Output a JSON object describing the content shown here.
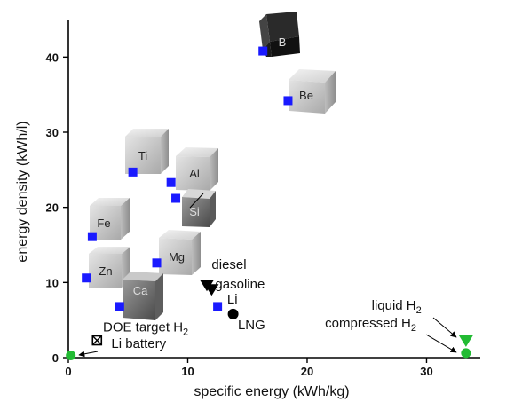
{
  "chart_data": {
    "type": "scatter",
    "xlabel": "specific energy (kWh/kg)",
    "ylabel": "energy density (kWh/l)",
    "xlim": [
      0,
      34.5
    ],
    "ylim": [
      0,
      45
    ],
    "x_ticks": [
      0,
      10,
      20,
      30
    ],
    "y_ticks": [
      0,
      10,
      20,
      30,
      40
    ],
    "grid": false,
    "series": [
      {
        "marker": "square",
        "color": "#1a1aff",
        "points": [
          {
            "x": 1.5,
            "y": 10.6
          },
          {
            "x": 2.0,
            "y": 16.1
          },
          {
            "x": 4.3,
            "y": 6.8
          },
          {
            "x": 5.4,
            "y": 24.7
          },
          {
            "x": 7.4,
            "y": 12.6
          },
          {
            "x": 8.6,
            "y": 23.3
          },
          {
            "x": 9.0,
            "y": 21.2
          },
          {
            "x": 12.5,
            "y": 6.8
          },
          {
            "x": 16.3,
            "y": 40.8
          },
          {
            "x": 18.4,
            "y": 34.2
          }
        ]
      },
      {
        "marker": "triangle-down",
        "color": "#000000",
        "points": [
          {
            "x": 11.6,
            "y": 9.6
          },
          {
            "x": 12.0,
            "y": 9.0
          }
        ]
      },
      {
        "marker": "circle",
        "color": "#000000",
        "points": [
          {
            "x": 13.8,
            "y": 5.8
          }
        ]
      },
      {
        "marker": "crossed-square",
        "color": "#000000",
        "points": [
          {
            "x": 2.4,
            "y": 2.3
          }
        ]
      },
      {
        "marker": "circle",
        "color": "#22bb33",
        "points": [
          {
            "x": 0.2,
            "y": 0.3
          },
          {
            "x": 33.3,
            "y": 0.6
          }
        ]
      },
      {
        "marker": "triangle-down",
        "color": "#22bb33",
        "points": [
          {
            "x": 33.3,
            "y": 2.2
          }
        ]
      }
    ],
    "annotations": [
      {
        "text": "diesel",
        "x": 12.0,
        "y": 11.8
      },
      {
        "text": "gasoline",
        "x": 12.3,
        "y": 9.2
      },
      {
        "text": "Li",
        "x": 13.3,
        "y": 7.2
      },
      {
        "text": "LNG",
        "x": 14.2,
        "y": 3.8
      },
      {
        "text": "DOE target H",
        "sub": "2",
        "x": 2.9,
        "y": 3.5
      },
      {
        "text": "Li battery",
        "x": 3.6,
        "y": 1.3
      },
      {
        "text": "liquid H",
        "sub": "2",
        "x": 25.4,
        "y": 6.4
      },
      {
        "text": "compressed H",
        "sub": "2",
        "x": 21.5,
        "y": 4.0
      }
    ],
    "element_cubes": [
      {
        "symbol": "B",
        "shade": "dark"
      },
      {
        "symbol": "Be",
        "shade": "light"
      },
      {
        "symbol": "Ti",
        "shade": "light"
      },
      {
        "symbol": "Al",
        "shade": "light"
      },
      {
        "symbol": "Si",
        "shade": "dark"
      },
      {
        "symbol": "Fe",
        "shade": "light"
      },
      {
        "symbol": "Mg",
        "shade": "light"
      },
      {
        "symbol": "Zn",
        "shade": "light"
      },
      {
        "symbol": "Ca",
        "shade": "mid"
      }
    ]
  }
}
